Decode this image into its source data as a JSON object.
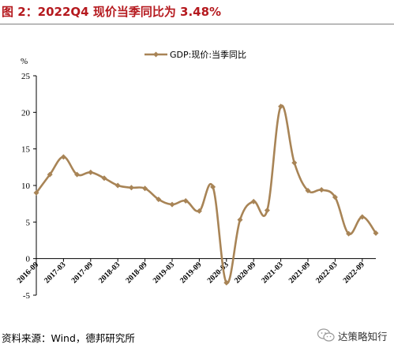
{
  "title": "图 2：2022Q4  现价当季同比为 3.48%",
  "source": "资料来源：Wind，德邦研究所",
  "watermark": {
    "text": "达策略知行",
    "icon": "wechat-icon"
  },
  "chart_data": {
    "type": "line",
    "ylabel": "%",
    "ylim": [
      -5,
      25
    ],
    "yticks": [
      -5,
      0,
      5,
      10,
      15,
      20,
      25
    ],
    "legend_position": "top-center",
    "grid": false,
    "series": [
      {
        "name": "GDP:现价:当季同比",
        "color": "#a88456",
        "x": [
          "2016-09",
          "2016-12",
          "2017-03",
          "2017-06",
          "2017-09",
          "2017-12",
          "2018-03",
          "2018-06",
          "2018-09",
          "2018-12",
          "2019-03",
          "2019-06",
          "2019-09",
          "2019-12",
          "2020-03",
          "2020-06",
          "2020-09",
          "2020-12",
          "2021-03",
          "2021-06",
          "2021-09",
          "2021-12",
          "2022-03",
          "2022-06",
          "2022-09",
          "2022-12"
        ],
        "values": [
          9.0,
          11.5,
          13.9,
          11.5,
          11.8,
          11.0,
          10.0,
          9.7,
          9.6,
          8.1,
          7.4,
          7.9,
          6.5,
          9.8,
          -3.3,
          5.3,
          7.8,
          6.6,
          20.8,
          13.1,
          9.3,
          9.4,
          8.4,
          3.4,
          5.7,
          3.48
        ]
      }
    ],
    "xtick_labels": [
      "2016-09",
      "2017-03",
      "2017-09",
      "2018-03",
      "2018-09",
      "2019-03",
      "2019-09",
      "2020-03",
      "2020-09",
      "2021-03",
      "2021-09",
      "2022-03",
      "2022-09"
    ]
  }
}
